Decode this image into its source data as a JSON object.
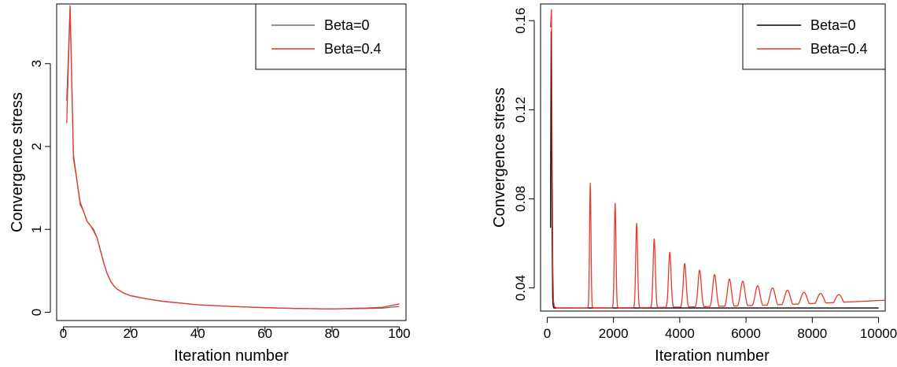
{
  "chart_data": [
    {
      "type": "line",
      "xlabel": "Iteration number",
      "ylabel": "Convergence stress",
      "xlim": [
        -2,
        102
      ],
      "ylim": [
        -0.1,
        3.72
      ],
      "xticks": [
        0,
        20,
        40,
        60,
        80,
        100
      ],
      "yticks": [
        0,
        1,
        2,
        3
      ],
      "grid": false,
      "legend_position": "top-right",
      "series": [
        {
          "name": "Beta=0",
          "color": "#6b6b6b",
          "x": [
            1,
            2,
            3,
            4,
            5,
            6,
            7,
            8,
            9,
            10,
            11,
            12,
            13,
            14,
            15,
            16,
            18,
            20,
            25,
            30,
            40,
            50,
            60,
            70,
            80,
            90,
            95,
            100
          ],
          "y": [
            2.55,
            3.68,
            1.85,
            1.6,
            1.3,
            1.22,
            1.1,
            1.05,
            1.0,
            0.9,
            0.75,
            0.6,
            0.47,
            0.38,
            0.32,
            0.28,
            0.23,
            0.2,
            0.16,
            0.13,
            0.09,
            0.07,
            0.055,
            0.045,
            0.04,
            0.045,
            0.05,
            0.07
          ]
        },
        {
          "name": "Beta=0.4",
          "color": "#e8392b",
          "x": [
            1,
            2,
            3,
            4,
            5,
            6,
            7,
            8,
            9,
            10,
            11,
            12,
            13,
            14,
            15,
            16,
            18,
            20,
            25,
            30,
            40,
            50,
            60,
            70,
            80,
            90,
            95,
            100
          ],
          "y": [
            2.28,
            3.7,
            1.9,
            1.6,
            1.33,
            1.22,
            1.1,
            1.05,
            0.98,
            0.9,
            0.75,
            0.6,
            0.47,
            0.38,
            0.32,
            0.28,
            0.23,
            0.2,
            0.16,
            0.13,
            0.09,
            0.07,
            0.055,
            0.045,
            0.04,
            0.05,
            0.06,
            0.1
          ]
        }
      ]
    },
    {
      "type": "line",
      "xlabel": "Iteration number",
      "ylabel": "Convergence stress",
      "xlim": [
        -200,
        10200
      ],
      "ylim": [
        0.0296,
        0.1675
      ],
      "xticks": [
        0,
        2000,
        4000,
        6000,
        8000,
        10000
      ],
      "yticks": [
        0.04,
        0.08,
        0.12,
        0.16
      ],
      "grid": false,
      "legend_position": "top-right",
      "baseline_value": 0.031,
      "spikes": [
        {
          "x": 1300,
          "peak": 0.087,
          "width": 30
        },
        {
          "x": 2050,
          "peak": 0.078,
          "width": 35
        },
        {
          "x": 2700,
          "peak": 0.069,
          "width": 40
        },
        {
          "x": 3230,
          "peak": 0.062,
          "width": 48
        },
        {
          "x": 3700,
          "peak": 0.056,
          "width": 55
        },
        {
          "x": 4150,
          "peak": 0.051,
          "width": 62
        },
        {
          "x": 4600,
          "peak": 0.048,
          "width": 70
        },
        {
          "x": 5050,
          "peak": 0.046,
          "width": 78
        },
        {
          "x": 5500,
          "peak": 0.044,
          "width": 85
        },
        {
          "x": 5900,
          "peak": 0.043,
          "width": 95
        },
        {
          "x": 6350,
          "peak": 0.041,
          "width": 105
        },
        {
          "x": 6800,
          "peak": 0.04,
          "width": 115
        },
        {
          "x": 7250,
          "peak": 0.039,
          "width": 125
        },
        {
          "x": 7750,
          "peak": 0.038,
          "width": 140
        },
        {
          "x": 8250,
          "peak": 0.0375,
          "width": 150
        },
        {
          "x": 8800,
          "peak": 0.037,
          "width": 165
        }
      ],
      "series": [
        {
          "name": "Beta=0",
          "color": "#000000",
          "x": [
            100,
            120,
            135,
            150,
            165,
            180,
            200,
            300,
            10000
          ],
          "y": [
            0.067,
            0.155,
            0.11,
            0.06,
            0.036,
            0.032,
            0.031,
            0.031,
            0.031
          ]
        },
        {
          "name": "Beta=0.4",
          "color": "#e8392b",
          "x": [
            100,
            130,
            150,
            170,
            190,
            220,
            300,
            10200
          ],
          "y": [
            0.157,
            0.165,
            0.1,
            0.05,
            0.034,
            0.0315,
            0.031,
            0.0345
          ]
        }
      ]
    }
  ]
}
